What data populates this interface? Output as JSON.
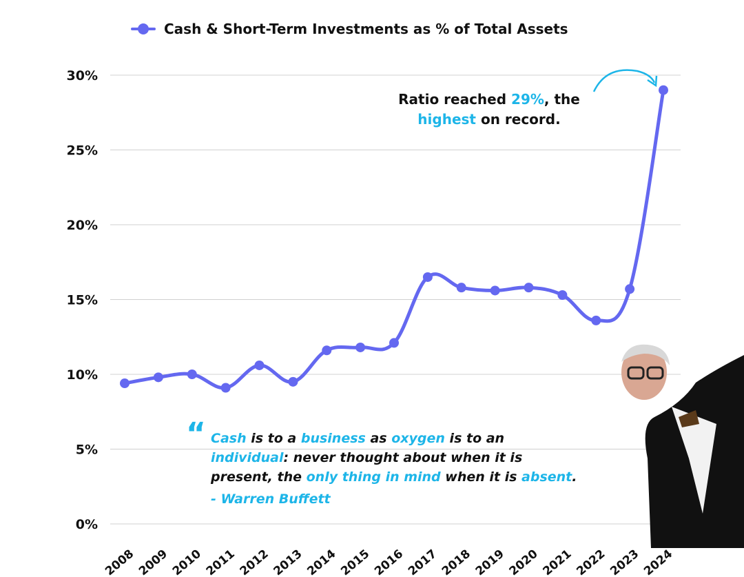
{
  "chart_data": {
    "type": "line",
    "title": "",
    "legend": [
      "Cash & Short-Term Investments as % of Total Assets"
    ],
    "legend_position": "top",
    "categories": [
      "2008",
      "2009",
      "2010",
      "2011",
      "2012",
      "2013",
      "2014",
      "2015",
      "2016",
      "2017",
      "2018",
      "2019",
      "2020",
      "2021",
      "2022",
      "2023",
      "2024"
    ],
    "series": [
      {
        "name": "Cash & Short-Term Investments as % of Total Assets",
        "values": [
          9.4,
          9.8,
          10.0,
          9.1,
          10.6,
          9.5,
          11.6,
          11.8,
          12.1,
          16.5,
          15.8,
          15.6,
          15.8,
          15.3,
          13.6,
          15.7,
          29.0
        ]
      }
    ],
    "ylim": [
      0,
      30
    ],
    "yticks": [
      0,
      5,
      10,
      15,
      20,
      25,
      30
    ],
    "ytick_labels": [
      "0%",
      "5%",
      "10%",
      "15%",
      "20%",
      "25%",
      "30%"
    ],
    "grid": true,
    "xlabel": "",
    "ylabel": "",
    "colors": {
      "line": "#6468F0",
      "accent": "#1DB5E8",
      "grid": "#d0d0d0"
    }
  },
  "annotation": {
    "p1": "Ratio reached ",
    "p2": "29%",
    "p3": ", the",
    "p4": "highest",
    "p5": " on record."
  },
  "quote": {
    "mark": "“",
    "s1": "Cash",
    "s2": " is to a ",
    "s3": "business",
    "s4": " as ",
    "s5": "oxygen",
    "s6": " is to an",
    "s7": "individual",
    "s8": ": never thought about when it is",
    "s9": "present, the ",
    "s10": "only thing in mind",
    "s11": " when it is ",
    "s12": "absent",
    "s13": ".",
    "author": "- Warren Buffett"
  }
}
